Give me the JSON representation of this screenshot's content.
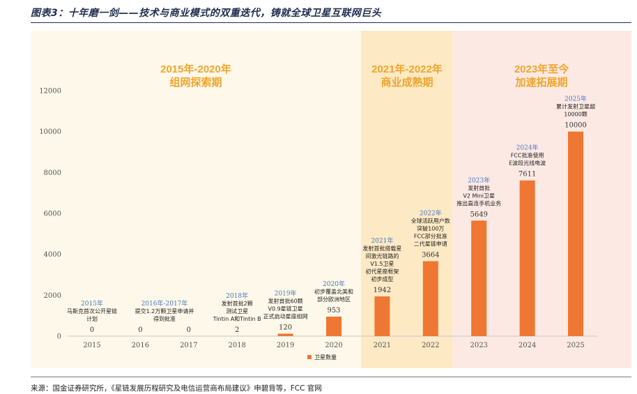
{
  "header": {
    "title": "图表3：十年磨一剑——技术与商业模式的双重迭代，铸就全球卫星互联网巨头"
  },
  "footer": {
    "source": "来源：国金证券研究所，《星链发展历程研究及电信运营商布局建议》申碧背等，FCC 官网"
  },
  "colors": {
    "bar": "#ee7733",
    "period1_bg": "#fdf8e9",
    "period2_bg": "#fde9c4",
    "period3_bg": "#fde9e4",
    "period_title": "#f0a52b",
    "year_label": "#4a78c2"
  },
  "periods": [
    {
      "line1": "2015年-2020年",
      "line2": "组网探索期"
    },
    {
      "line1": "2021年-2022年",
      "line2": "商业成熟期"
    },
    {
      "line1": "2023年至今",
      "line2": "加速拓展期"
    }
  ],
  "chart_data": {
    "type": "bar",
    "title": "",
    "xlabel": "",
    "ylabel": "",
    "categories": [
      "2015",
      "2016",
      "2017",
      "2018",
      "2019",
      "2020",
      "2021",
      "2022",
      "2023",
      "2024",
      "2025"
    ],
    "series": [
      {
        "name": "卫星数量",
        "values": [
          0,
          0,
          0,
          2,
          120,
          953,
          1942,
          3664,
          5649,
          7611,
          10000
        ]
      }
    ],
    "value_labels": [
      "0",
      "0",
      "0",
      "2",
      "120",
      "953",
      "1942",
      "3664",
      "5649",
      "7611",
      "10000"
    ],
    "ylim": [
      0,
      12000
    ],
    "yticks": [
      0,
      2000,
      4000,
      6000,
      8000,
      10000,
      12000
    ],
    "legend": "bottom-right",
    "grid": false,
    "annotations": [
      {
        "category": "2015",
        "year": "2015年",
        "lines": [
          "马斯克首次公开星链",
          "计划"
        ]
      },
      {
        "category": "2016",
        "year": "2016年-2017年",
        "lines": [
          "提交1.2万颗卫星申请并",
          "得到批准"
        ]
      },
      {
        "category": "2018",
        "year": "2018年",
        "lines": [
          "发射首批2颗",
          "测试卫星",
          "Tintin A和Tintin B"
        ]
      },
      {
        "category": "2019",
        "year": "2019年",
        "lines": [
          "发射首批60颗",
          "V0.9星链卫星",
          "正式启动星座组网"
        ]
      },
      {
        "category": "2020",
        "year": "2020年",
        "lines": [
          "初步覆盖北美和",
          "部分欧洲地区"
        ]
      },
      {
        "category": "2021",
        "year": "2021年",
        "lines": [
          "发射首批搭载星",
          "间激光链路的",
          "V1.5卫星",
          "初代星座框架",
          "初步成型"
        ]
      },
      {
        "category": "2022",
        "year": "2022年",
        "lines": [
          "全球活跃用户数",
          "突破100万",
          "FCC部分批准",
          "二代星链申请"
        ]
      },
      {
        "category": "2023",
        "year": "2023年",
        "lines": [
          "发射首批",
          "V2 Mini卫星",
          "推出直连手机业务"
        ]
      },
      {
        "category": "2024",
        "year": "2024年",
        "lines": [
          "FCC批准使用",
          "E波段光线电波"
        ]
      },
      {
        "category": "2025",
        "year": "2025年",
        "lines": [
          "累计发射卫星超",
          "10000颗"
        ]
      }
    ]
  }
}
